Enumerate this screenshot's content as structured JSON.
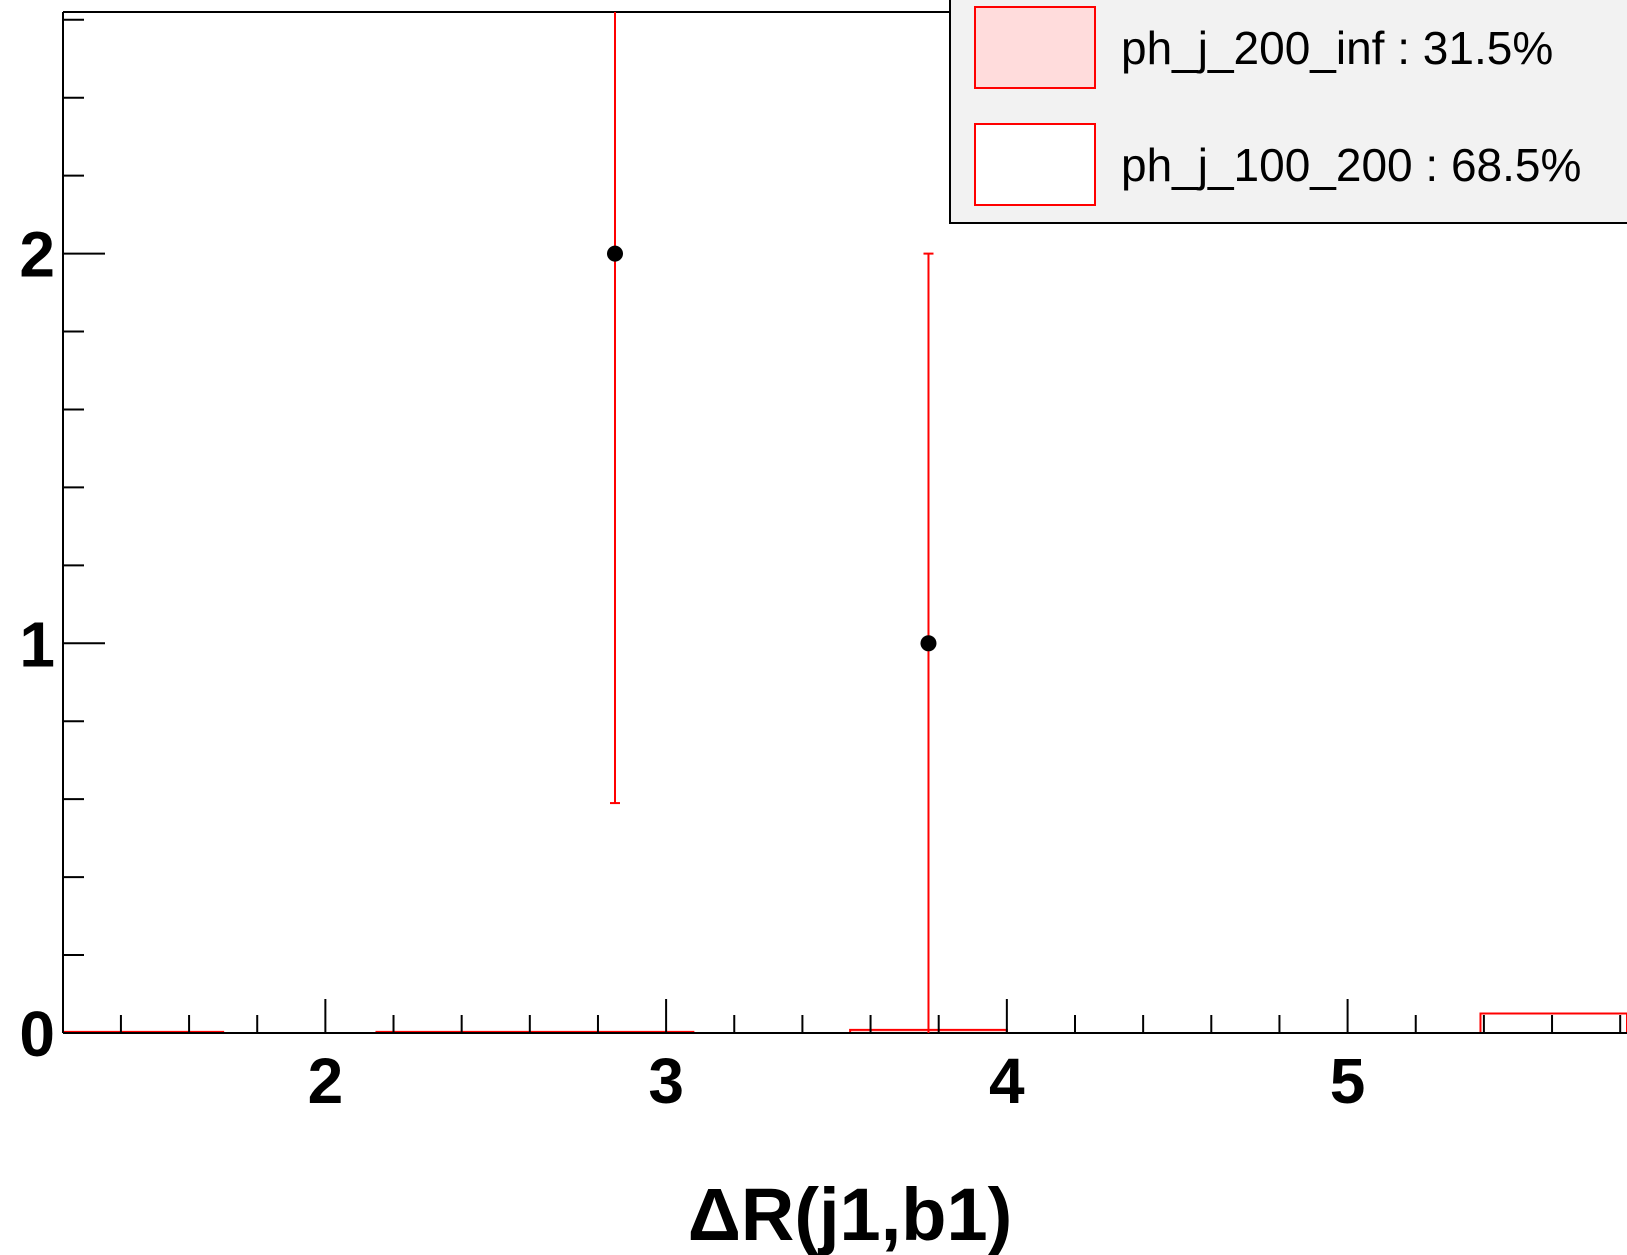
{
  "chart_data": {
    "type": "bar",
    "xlabel": "ΔR(j1,b1)",
    "ylabel": "",
    "xlim": [
      1.23,
      5.82
    ],
    "ylim": [
      0,
      2.62
    ],
    "x_ticks": [
      "2",
      "3",
      "4",
      "5"
    ],
    "y_ticks": [
      "0",
      "1",
      "2"
    ],
    "series": [
      {
        "name": "ph_j_200_inf : 31.5%",
        "kind": "stacked-hist",
        "fill": "#ffdcdc",
        "stroke": "#ff0000",
        "bins": [
          {
            "x0": 1.23,
            "x1": 1.7,
            "value": 0.003
          },
          {
            "x0": 2.15,
            "x1": 3.08,
            "value": 0.003
          },
          {
            "x0": 3.54,
            "x1": 4.0,
            "value": 0.008
          }
        ]
      },
      {
        "name": "ph_j_100_200 : 68.5%",
        "kind": "stacked-hist",
        "fill": "#ffffff",
        "stroke": "#ff0000",
        "bins": [
          {
            "x0": 5.39,
            "x1": 5.82,
            "value": 0.05
          }
        ]
      },
      {
        "name": "data",
        "kind": "points",
        "color": "#000000",
        "error_color": "#ff0000",
        "points": [
          {
            "x": 2.85,
            "y": 2,
            "err_low": 1.41,
            "err_high": 2.62
          },
          {
            "x": 3.77,
            "y": 1,
            "err_low": 1.0,
            "err_high": 1.0
          }
        ]
      }
    ],
    "legend": {
      "placement": "top-right",
      "entries": [
        {
          "label": "ph_j_200_inf : 31.5%",
          "fill": "#ffdcdc",
          "stroke": "#ff0000"
        },
        {
          "label": "ph_j_100_200 : 68.5%",
          "fill": "#ffffff",
          "stroke": "#ff0000"
        }
      ]
    }
  }
}
